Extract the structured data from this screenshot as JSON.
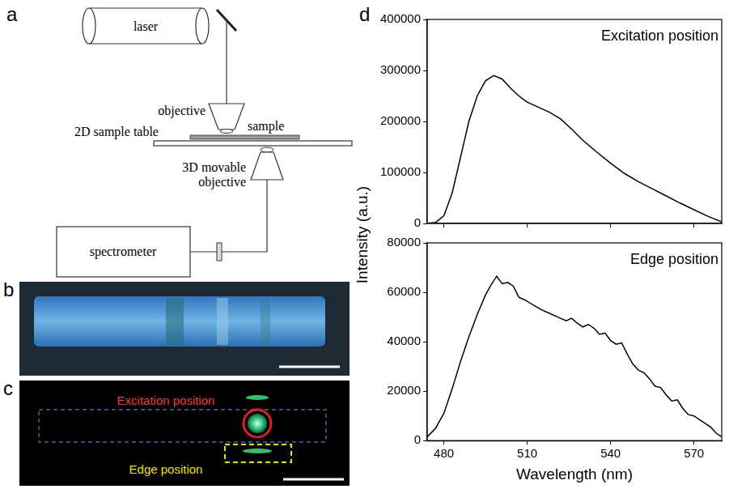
{
  "panels": {
    "a": {
      "letter": "a",
      "laser": "laser",
      "objective": "objective",
      "sample": "sample",
      "table": "2D sample table",
      "movable_objective": [
        "3D movable",
        "objective"
      ],
      "spectrometer": "spectrometer"
    },
    "b": {
      "letter": "b"
    },
    "c": {
      "letter": "c",
      "excitation_label": "Excitation position",
      "edge_label": "Edge position"
    },
    "d": {
      "letter": "d",
      "y_label": "Intensity (a.u.)"
    }
  },
  "chart_data": [
    {
      "type": "line",
      "annotation": "Excitation position",
      "color": "#000000",
      "x": [
        474,
        477,
        480,
        483,
        486,
        489,
        492,
        495,
        498,
        501,
        504,
        507,
        510,
        514,
        518,
        522,
        526,
        530,
        535,
        540,
        545,
        550,
        555,
        560,
        565,
        570,
        575,
        580
      ],
      "values": [
        0,
        2000,
        15000,
        60000,
        130000,
        200000,
        250000,
        280000,
        290000,
        283000,
        265000,
        250000,
        238000,
        228000,
        218000,
        205000,
        185000,
        163000,
        140000,
        118000,
        98000,
        82000,
        68000,
        54000,
        40000,
        27000,
        14000,
        3000
      ],
      "xlim": [
        474,
        580
      ],
      "xticks": [
        480,
        510,
        540,
        570
      ],
      "ylim": [
        0,
        400000
      ],
      "yticks": [
        0,
        100000,
        200000,
        300000,
        400000
      ],
      "grid": false,
      "tick_labels": "y"
    },
    {
      "type": "line",
      "annotation": "Edge position",
      "color": "#000000",
      "x_label": "Wavelength (nm)",
      "x": [
        474,
        477,
        480,
        483,
        486,
        489,
        492,
        495,
        497,
        499,
        501,
        503,
        505,
        507,
        509,
        512,
        515,
        518,
        521,
        524,
        526,
        528,
        530,
        532,
        534,
        536,
        538,
        540,
        542,
        544,
        546,
        548,
        550,
        552,
        554,
        556,
        558,
        560,
        562,
        564,
        566,
        568,
        570,
        572,
        574,
        576,
        578,
        580
      ],
      "values": [
        1500,
        5000,
        11000,
        21000,
        32000,
        42000,
        51000,
        59000,
        63000,
        66500,
        63500,
        64000,
        62500,
        58000,
        57000,
        55000,
        53000,
        51500,
        50000,
        48500,
        49500,
        47500,
        46000,
        47000,
        45500,
        43000,
        43500,
        40500,
        39000,
        39500,
        35000,
        31000,
        28500,
        27500,
        25000,
        22000,
        21500,
        18500,
        16000,
        16500,
        13000,
        10500,
        10000,
        8500,
        7000,
        5500,
        3000,
        1500
      ],
      "xlim": [
        474,
        580
      ],
      "xticks": [
        480,
        510,
        540,
        570
      ],
      "ylim": [
        0,
        80000
      ],
      "yticks": [
        0,
        20000,
        40000,
        60000,
        80000
      ],
      "grid": false
    }
  ]
}
